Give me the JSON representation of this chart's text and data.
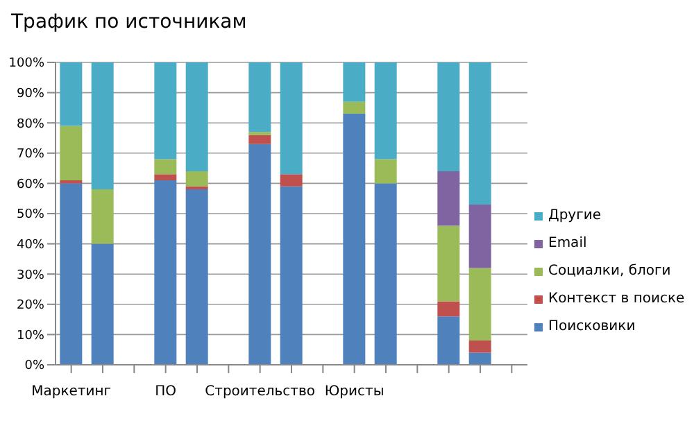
{
  "chart_data": {
    "type": "bar",
    "title": "Трафик по источникам",
    "stacked": true,
    "categories": [
      "Маркетинг",
      null,
      null,
      "ПО",
      null,
      null,
      "Строительство",
      null,
      null,
      "Юристы",
      null,
      null,
      null,
      null,
      null
    ],
    "series": [
      {
        "name": "Поисковики",
        "color": "#4f81bd",
        "values": [
          60,
          40,
          null,
          61,
          58,
          null,
          73,
          59,
          null,
          83,
          60,
          null,
          16,
          4,
          null
        ]
      },
      {
        "name": "Контекст в поиске",
        "color": "#c0504d",
        "values": [
          1,
          0,
          null,
          2,
          1,
          null,
          3,
          4,
          null,
          0,
          0,
          null,
          5,
          4,
          null
        ]
      },
      {
        "name": "Социалки, блоги",
        "color": "#9bbb59",
        "values": [
          18,
          18,
          null,
          5,
          5,
          null,
          1,
          0,
          null,
          4,
          8,
          null,
          25,
          24,
          null
        ]
      },
      {
        "name": "Email",
        "color": "#8064a2",
        "values": [
          0,
          0,
          null,
          0,
          0,
          null,
          0,
          0,
          null,
          0,
          0,
          null,
          18,
          21,
          null
        ]
      },
      {
        "name": "Другие",
        "color": "#4bacc6",
        "values": [
          21,
          42,
          null,
          32,
          36,
          null,
          23,
          37,
          null,
          13,
          32,
          null,
          36,
          47,
          null
        ]
      }
    ],
    "ylim": [
      0,
      100
    ],
    "yticks": [
      {
        "value": 0,
        "label": "0%"
      },
      {
        "value": 10,
        "label": "10%"
      },
      {
        "value": 20,
        "label": "20%"
      },
      {
        "value": 30,
        "label": "30%"
      },
      {
        "value": 40,
        "label": "40%"
      },
      {
        "value": 50,
        "label": "50%"
      },
      {
        "value": 60,
        "label": "60%"
      },
      {
        "value": 70,
        "label": "70%"
      },
      {
        "value": 80,
        "label": "80%"
      },
      {
        "value": 90,
        "label": "90%"
      },
      {
        "value": 100,
        "label": "100%"
      }
    ],
    "grid": "y",
    "legend": "right"
  }
}
